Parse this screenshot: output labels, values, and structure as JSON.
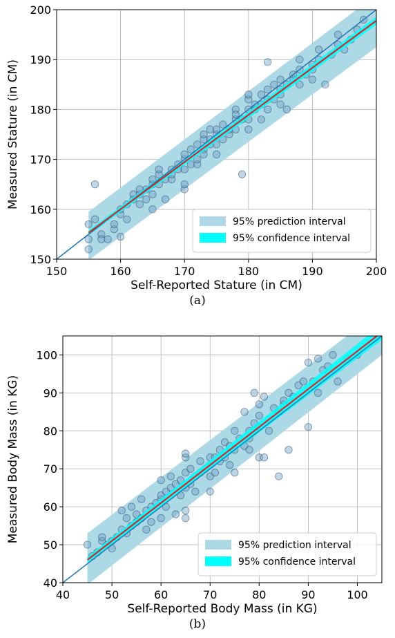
{
  "chart_data": [
    {
      "type": "scatter",
      "panel_label": "(a)",
      "xlabel": "Self-Reported Stature (in CM)",
      "ylabel": "Measured Stature (in CM)",
      "xlim": [
        150,
        200
      ],
      "ylim": [
        150,
        200
      ],
      "xticks": [
        150,
        160,
        170,
        180,
        190,
        200
      ],
      "yticks": [
        150,
        160,
        170,
        180,
        190,
        200
      ],
      "grid": true,
      "legend_position": "lower-right",
      "legend": [
        "95% prediction interval",
        "95% confidence interval"
      ],
      "colors": {
        "points": "#6fa3c7",
        "prediction_band": "#add8e6",
        "confidence_band": "#00ffff",
        "fit_line": "#d62728",
        "identity_line": "#1f77b4"
      },
      "identity_line": {
        "x": [
          150,
          200
        ],
        "y": [
          150,
          200
        ]
      },
      "fit_line": {
        "x": [
          155,
          200
        ],
        "y": [
          155.3,
          197.8
        ]
      },
      "prediction_band": {
        "x": [
          155,
          200
        ],
        "lower": [
          149.8,
          192.5
        ],
        "upper": [
          159.5,
          203
        ]
      },
      "confidence_band": {
        "x": [
          155,
          200
        ],
        "lower": [
          154.8,
          197.0
        ],
        "upper": [
          155.8,
          198.6
        ]
      },
      "points": [
        [
          155,
          154
        ],
        [
          155,
          152
        ],
        [
          155,
          157
        ],
        [
          156,
          165
        ],
        [
          156,
          158
        ],
        [
          157,
          155
        ],
        [
          157,
          154
        ],
        [
          158,
          154
        ],
        [
          159,
          156
        ],
        [
          159,
          157
        ],
        [
          160,
          159
        ],
        [
          160,
          154.5
        ],
        [
          160,
          160
        ],
        [
          161,
          158
        ],
        [
          161,
          161
        ],
        [
          162,
          162
        ],
        [
          162,
          163
        ],
        [
          163,
          161
        ],
        [
          163,
          163
        ],
        [
          163,
          164
        ],
        [
          164,
          162
        ],
        [
          164,
          164
        ],
        [
          165,
          160
        ],
        [
          165,
          165
        ],
        [
          165,
          166
        ],
        [
          165,
          163
        ],
        [
          166,
          165
        ],
        [
          166,
          167
        ],
        [
          166,
          168
        ],
        [
          167,
          162
        ],
        [
          167,
          166
        ],
        [
          168,
          166
        ],
        [
          168,
          168
        ],
        [
          168,
          167
        ],
        [
          169,
          168
        ],
        [
          169,
          169
        ],
        [
          170,
          164
        ],
        [
          170,
          165
        ],
        [
          170,
          170
        ],
        [
          170,
          171
        ],
        [
          170,
          168
        ],
        [
          171,
          172
        ],
        [
          171,
          169
        ],
        [
          172,
          169
        ],
        [
          172,
          170
        ],
        [
          172,
          173
        ],
        [
          173,
          172
        ],
        [
          173,
          174
        ],
        [
          173,
          175
        ],
        [
          173,
          171
        ],
        [
          174,
          173
        ],
        [
          174,
          174
        ],
        [
          174,
          176
        ],
        [
          175,
          173
        ],
        [
          175,
          175
        ],
        [
          175,
          176
        ],
        [
          175,
          171
        ],
        [
          176,
          174
        ],
        [
          176,
          177
        ],
        [
          177,
          175
        ],
        [
          177,
          176
        ],
        [
          178,
          176
        ],
        [
          178,
          178
        ],
        [
          178,
          180
        ],
        [
          178,
          179
        ],
        [
          179,
          167
        ],
        [
          179,
          178
        ],
        [
          180,
          176
        ],
        [
          180,
          180
        ],
        [
          180,
          182
        ],
        [
          180,
          183
        ],
        [
          180,
          178
        ],
        [
          181,
          180
        ],
        [
          181,
          181
        ],
        [
          182,
          178
        ],
        [
          182,
          181
        ],
        [
          182,
          183
        ],
        [
          183,
          180
        ],
        [
          183,
          182
        ],
        [
          183,
          189.5
        ],
        [
          183,
          184
        ],
        [
          184,
          182
        ],
        [
          184,
          185
        ],
        [
          185,
          181
        ],
        [
          185,
          183
        ],
        [
          185,
          184
        ],
        [
          185,
          186
        ],
        [
          186,
          180
        ],
        [
          186,
          185
        ],
        [
          187,
          186
        ],
        [
          187,
          187
        ],
        [
          188,
          185
        ],
        [
          188,
          188
        ],
        [
          188,
          190
        ],
        [
          189,
          187
        ],
        [
          190,
          188
        ],
        [
          190,
          189
        ],
        [
          190,
          186
        ],
        [
          191,
          190
        ],
        [
          191,
          192
        ],
        [
          192,
          185
        ],
        [
          193,
          191
        ],
        [
          194,
          193
        ],
        [
          194,
          195
        ],
        [
          195,
          192
        ],
        [
          196,
          194
        ],
        [
          197,
          196
        ],
        [
          198,
          198
        ]
      ]
    },
    {
      "type": "scatter",
      "panel_label": "(b)",
      "xlabel": "Self-Reported Body Mass (in KG)",
      "ylabel": "Measured Body Mass (in KG)",
      "xlim": [
        40,
        105
      ],
      "ylim": [
        40,
        105
      ],
      "xticks": [
        40,
        50,
        60,
        70,
        80,
        90,
        100
      ],
      "yticks": [
        40,
        50,
        60,
        70,
        80,
        90,
        100
      ],
      "grid": true,
      "legend_position": "lower-right",
      "legend": [
        "95% prediction interval",
        "95% confidence interval"
      ],
      "colors": {
        "points": "#6fa3c7",
        "prediction_band": "#add8e6",
        "confidence_band": "#00ffff",
        "fit_line": "#d62728",
        "identity_line": "#1f77b4"
      },
      "identity_line": {
        "x": [
          40,
          105
        ],
        "y": [
          40,
          105
        ]
      },
      "fit_line": {
        "x": [
          45,
          105
        ],
        "y": [
          46,
          106
        ]
      },
      "prediction_band": {
        "x": [
          45,
          105
        ],
        "lower": [
          39.5,
          100
        ],
        "upper": [
          53,
          112
        ]
      },
      "confidence_band": {
        "x": [
          45,
          105
        ],
        "lower": [
          45.3,
          104
        ],
        "upper": [
          46.8,
          108
        ]
      },
      "points": [
        [
          45,
          50
        ],
        [
          46,
          47
        ],
        [
          47,
          48
        ],
        [
          48,
          51
        ],
        [
          48,
          52
        ],
        [
          49,
          50
        ],
        [
          50,
          51
        ],
        [
          50,
          49
        ],
        [
          51,
          52
        ],
        [
          52,
          54
        ],
        [
          52,
          59
        ],
        [
          53,
          57
        ],
        [
          53,
          53
        ],
        [
          54,
          55
        ],
        [
          54,
          60
        ],
        [
          55,
          56
        ],
        [
          55,
          58
        ],
        [
          56,
          62
        ],
        [
          56,
          57
        ],
        [
          57,
          54
        ],
        [
          57,
          59
        ],
        [
          58,
          60
        ],
        [
          58,
          56
        ],
        [
          59,
          61
        ],
        [
          60,
          62
        ],
        [
          60,
          57
        ],
        [
          60,
          63
        ],
        [
          60,
          67
        ],
        [
          61,
          60
        ],
        [
          61,
          64
        ],
        [
          62,
          65
        ],
        [
          62,
          68
        ],
        [
          63,
          58
        ],
        [
          63,
          66
        ],
        [
          64,
          63
        ],
        [
          64,
          67
        ],
        [
          65,
          57
        ],
        [
          65,
          59
        ],
        [
          65,
          65
        ],
        [
          65,
          69
        ],
        [
          65,
          73
        ],
        [
          65,
          74
        ],
        [
          66,
          66
        ],
        [
          66,
          70
        ],
        [
          67,
          68
        ],
        [
          67,
          64
        ],
        [
          68,
          69
        ],
        [
          68,
          72
        ],
        [
          69,
          70
        ],
        [
          70,
          64
        ],
        [
          70,
          73
        ],
        [
          70,
          68
        ],
        [
          70,
          71
        ],
        [
          71,
          73
        ],
        [
          71,
          69
        ],
        [
          72,
          72
        ],
        [
          72,
          75
        ],
        [
          73,
          77
        ],
        [
          73,
          73
        ],
        [
          74,
          71
        ],
        [
          74,
          76
        ],
        [
          75,
          69
        ],
        [
          75,
          75
        ],
        [
          75,
          80
        ],
        [
          76,
          78
        ],
        [
          77,
          85
        ],
        [
          77,
          76
        ],
        [
          78,
          80
        ],
        [
          78,
          75
        ],
        [
          78,
          78
        ],
        [
          79,
          90
        ],
        [
          79,
          82
        ],
        [
          80,
          73
        ],
        [
          80,
          84
        ],
        [
          80,
          87
        ],
        [
          80,
          81
        ],
        [
          81,
          73
        ],
        [
          81,
          89
        ],
        [
          82,
          80
        ],
        [
          82,
          83
        ],
        [
          83,
          86
        ],
        [
          84,
          68
        ],
        [
          84,
          85
        ],
        [
          85,
          87
        ],
        [
          85,
          88
        ],
        [
          86,
          75
        ],
        [
          86,
          90
        ],
        [
          87,
          89
        ],
        [
          88,
          92
        ],
        [
          89,
          93
        ],
        [
          90,
          98
        ],
        [
          90,
          81
        ],
        [
          91,
          93
        ],
        [
          92,
          90
        ],
        [
          92,
          99
        ],
        [
          93,
          96
        ],
        [
          94,
          97
        ],
        [
          95,
          100
        ],
        [
          96,
          93
        ],
        [
          98,
          99
        ],
        [
          100,
          100
        ]
      ]
    }
  ]
}
